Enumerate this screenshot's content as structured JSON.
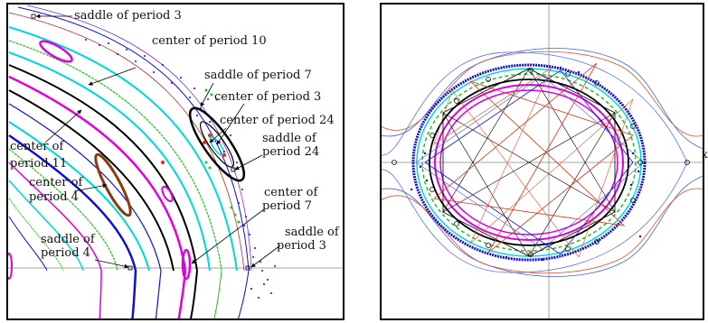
{
  "left_panel": {
    "labels": [
      {
        "id": "saddle-3-top",
        "lines": [
          "saddle of period 3"
        ]
      },
      {
        "id": "center-10",
        "lines": [
          "center of period 10"
        ]
      },
      {
        "id": "saddle-7",
        "lines": [
          "saddle of period 7"
        ]
      },
      {
        "id": "center-3",
        "lines": [
          "center of period 3"
        ]
      },
      {
        "id": "center-24",
        "lines": [
          "center of period 24"
        ]
      },
      {
        "id": "saddle-24",
        "lines": [
          "saddle of",
          "period 24"
        ]
      },
      {
        "id": "center-11",
        "lines": [
          "center of",
          "period 11"
        ]
      },
      {
        "id": "center-4",
        "lines": [
          "center of",
          "period 4"
        ]
      },
      {
        "id": "center-7",
        "lines": [
          "center of",
          "period 7"
        ]
      },
      {
        "id": "saddle-3-bottom",
        "lines": [
          "saddle of",
          "period 3"
        ]
      },
      {
        "id": "saddle-4",
        "lines": [
          "saddle of",
          "period 4"
        ]
      }
    ]
  },
  "right_panel": {
    "axis_label": "x"
  },
  "colors": {
    "black": "#000000",
    "blue": "#1010d0",
    "cyan": "#00e0e0",
    "magenta": "#e000e0",
    "green": "#20c020",
    "brown": "#8b3a0a",
    "red": "#e03010",
    "orange_red": "#e05030",
    "light_blue": "#4060e0",
    "gray_axis": "#888888"
  }
}
